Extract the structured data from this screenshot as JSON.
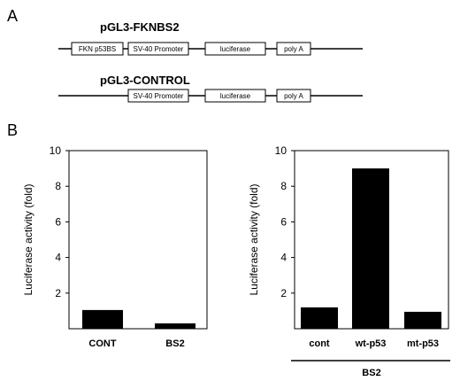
{
  "panels": {
    "a": "A",
    "b": "B"
  },
  "constructs": [
    {
      "name": "pGL3-FKNBS2",
      "elements": [
        "FKN p53BS",
        "SV-40 Promoter",
        "luciferase",
        "poly A"
      ]
    },
    {
      "name": "pGL3-CONTROL",
      "elements": [
        "SV-40 Promoter",
        "luciferase",
        "poly A"
      ]
    }
  ],
  "chart_data": [
    {
      "type": "bar",
      "categories": [
        "CONT",
        "BS2"
      ],
      "values": [
        1.05,
        0.3
      ],
      "ylabel": "Luciferase activity (fold)",
      "ylim": [
        0,
        10
      ],
      "yticks": [
        2,
        4,
        6,
        8,
        10
      ],
      "color": "#000000"
    },
    {
      "type": "bar",
      "categories": [
        "cont",
        "wt-p53",
        "mt-p53"
      ],
      "values": [
        1.2,
        9.0,
        0.95
      ],
      "ylabel": "Luciferase activity (fold)",
      "ylim": [
        0,
        10
      ],
      "yticks": [
        2,
        4,
        6,
        8,
        10
      ],
      "group_label": "BS2",
      "color": "#000000"
    }
  ]
}
